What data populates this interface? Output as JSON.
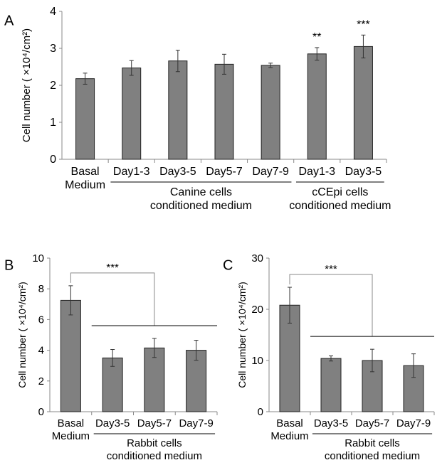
{
  "chart_data": [
    {
      "type": "bar",
      "panel_label": "A",
      "ylabel": "Cell number ( ×10⁴/cm²)",
      "ylim": [
        0,
        4
      ],
      "yticks": [
        0,
        1,
        2,
        3,
        4
      ],
      "categories": [
        "Basal Medium",
        "Day1-3",
        "Day3-5",
        "Day5-7",
        "Day7-9",
        "Day1-3",
        "Day3-5"
      ],
      "values": [
        2.18,
        2.47,
        2.66,
        2.57,
        2.54,
        2.85,
        3.05
      ],
      "errors": [
        0.15,
        0.2,
        0.29,
        0.27,
        0.06,
        0.17,
        0.31
      ],
      "significance": [
        "",
        "",
        "",
        "",
        "",
        "**",
        "***"
      ],
      "groups": [
        {
          "label": "Canine cells conditioned medium",
          "lines": [
            "Canine cells",
            "conditioned medium"
          ],
          "from": 1,
          "to": 4
        },
        {
          "label": "cCEpi cells conditioned medium",
          "lines": [
            "cCEpi cells",
            "conditioned medium"
          ],
          "from": 5,
          "to": 6
        }
      ],
      "bar_color": "#808080"
    },
    {
      "type": "bar",
      "panel_label": "B",
      "ylabel": "Cell number ( ×10⁴/cm²)",
      "ylim": [
        0,
        10
      ],
      "yticks": [
        0,
        2,
        4,
        6,
        8,
        10
      ],
      "categories": [
        "Basal Medium",
        "Day3-5",
        "Day5-7",
        "Day7-9"
      ],
      "values": [
        7.25,
        3.5,
        4.15,
        4.0
      ],
      "errors": [
        0.95,
        0.55,
        0.62,
        0.65
      ],
      "bracket": {
        "label": "***",
        "from": 0,
        "to_group": [
          1,
          3
        ]
      },
      "groups": [
        {
          "label": "Rabbit cells conditioned medium",
          "lines": [
            "Rabbit cells",
            "conditioned medium"
          ],
          "from": 1,
          "to": 3
        }
      ],
      "bar_color": "#808080"
    },
    {
      "type": "bar",
      "panel_label": "C",
      "ylabel": "Cell number ( ×10⁴/cm²)",
      "ylim": [
        0,
        30
      ],
      "yticks": [
        0,
        10,
        20,
        30
      ],
      "categories": [
        "Basal Medium",
        "Day3-5",
        "Day5-7",
        "Day7-9"
      ],
      "values": [
        20.8,
        10.4,
        10.0,
        9.0
      ],
      "errors": [
        3.5,
        0.5,
        2.2,
        2.3
      ],
      "bracket": {
        "label": "***",
        "from": 0,
        "to_group": [
          1,
          3
        ]
      },
      "groups": [
        {
          "label": "Rabbit cells conditioned medium",
          "lines": [
            "Rabbit cells",
            "conditioned medium"
          ],
          "from": 1,
          "to": 3
        }
      ],
      "bar_color": "#808080"
    }
  ]
}
